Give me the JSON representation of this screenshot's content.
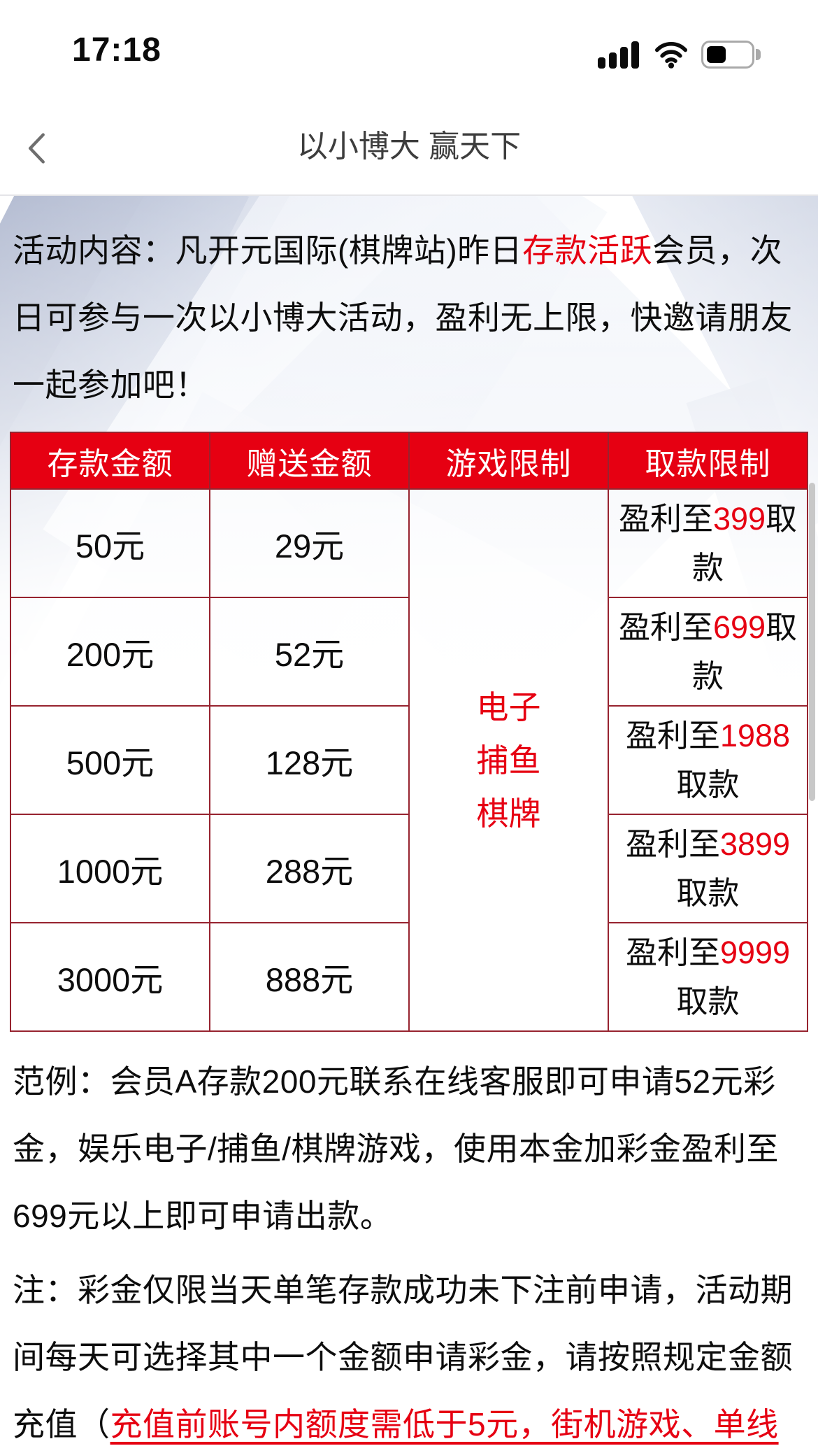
{
  "status_bar": {
    "time": "17:18",
    "icons": [
      "cellular-signal-icon",
      "wifi-icon",
      "battery-icon"
    ],
    "battery_level_percent": 38
  },
  "nav_bar": {
    "title": "以小博大 赢天下",
    "back_icon": "chevron-left-icon"
  },
  "colors": {
    "accent_red": "#e60012",
    "table_border_red": "#97232f",
    "body_text": "#0d0d0d",
    "nav_title_text": "#3d3d3d"
  },
  "intro": {
    "segments": [
      {
        "text": "活动内容：凡开元国际(棋牌站)昨日"
      },
      {
        "text": "存款活跃",
        "red": true
      },
      {
        "text": "会员，次日可参与一次以小博大活动，盈利无上限，快邀请朋友一起参加吧！"
      }
    ]
  },
  "table": {
    "headers": [
      "存款金额",
      "赠送金额",
      "游戏限制",
      "取款限制"
    ],
    "game_limit_lines": [
      "电子",
      "捕鱼",
      "棋牌"
    ],
    "rows": [
      {
        "deposit": "50元",
        "bonus": "29元",
        "withdraw": [
          {
            "text": "盈利至"
          },
          {
            "text": "399",
            "red": true
          },
          {
            "text": "取款"
          }
        ]
      },
      {
        "deposit": "200元",
        "bonus": "52元",
        "withdraw": [
          {
            "text": "盈利至"
          },
          {
            "text": "699",
            "red": true
          },
          {
            "text": "取款"
          }
        ]
      },
      {
        "deposit": "500元",
        "bonus": "128元",
        "withdraw": [
          {
            "text": "盈利至"
          },
          {
            "text": "1988",
            "red": true
          },
          {
            "text": "取款"
          }
        ]
      },
      {
        "deposit": "1000元",
        "bonus": "288元",
        "withdraw": [
          {
            "text": "盈利至"
          },
          {
            "text": "3899",
            "red": true
          },
          {
            "text": "取款"
          }
        ]
      },
      {
        "deposit": "3000元",
        "bonus": "888元",
        "withdraw": [
          {
            "text": "盈利至"
          },
          {
            "text": "9999",
            "red": true
          },
          {
            "text": "取款"
          }
        ]
      }
    ]
  },
  "example": {
    "segments": [
      {
        "text": "范例：会员A存款200元联系在线客服即可申请52元彩金，娱乐电子/捕鱼/棋牌游戏，使用本金加彩金盈利至699元以上即可申请出款。"
      }
    ]
  },
  "note": {
    "segments": [
      {
        "text": "注：彩金仅限当天单笔存款成功未下注前申请，活动期间每天可选择其中一个金额申请彩金，请按照规定金额充值（"
      },
      {
        "text": "充值前账号内额度需低于5元，街机游戏、单线",
        "red": true,
        "underline": true
      }
    ]
  }
}
